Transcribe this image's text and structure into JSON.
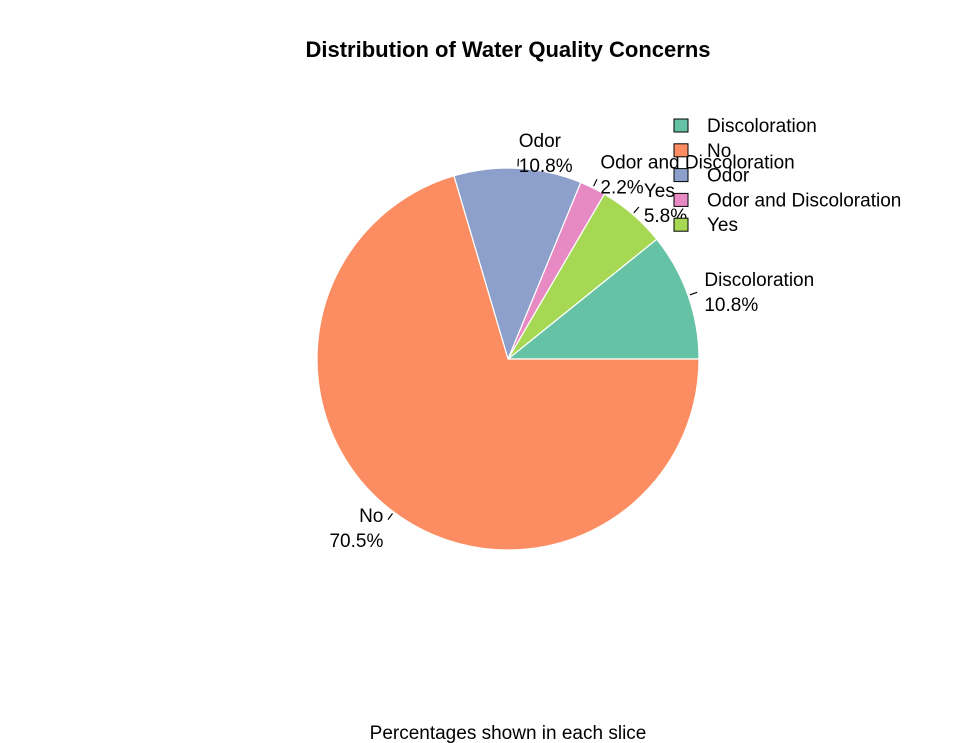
{
  "chart_data": {
    "type": "pie",
    "title": "Distribution of Water Quality Concerns",
    "caption": "Percentages shown in each slice",
    "legend_position": "top-right",
    "slices": [
      {
        "name": "Discoloration",
        "value": 10.8,
        "percent_label": "10.8%",
        "color": "#66c2a5"
      },
      {
        "name": "Yes",
        "value": 5.8,
        "percent_label": "5.8%",
        "color": "#a6d854"
      },
      {
        "name": "Odor and Discoloration",
        "value": 2.2,
        "percent_label": "2.2%",
        "color": "#e78ac3"
      },
      {
        "name": "Odor",
        "value": 10.8,
        "percent_label": "10.8%",
        "color": "#8da0cb"
      },
      {
        "name": "No",
        "value": 70.5,
        "percent_label": "70.5%",
        "color": "#fc8d62"
      }
    ],
    "legend": [
      {
        "name": "Discoloration",
        "color": "#66c2a5"
      },
      {
        "name": "No",
        "color": "#fc8d62"
      },
      {
        "name": "Odor",
        "color": "#8da0cb"
      },
      {
        "name": "Odor and Discoloration",
        "color": "#e78ac3"
      },
      {
        "name": "Yes",
        "color": "#a6d854"
      }
    ]
  }
}
